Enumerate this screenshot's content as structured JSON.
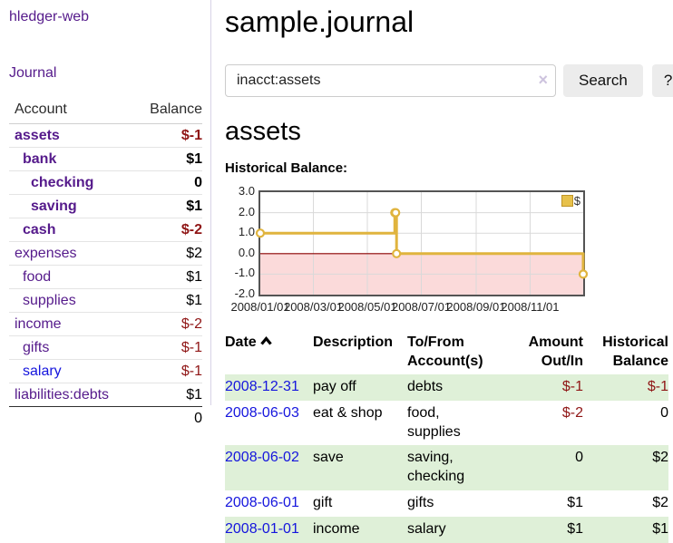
{
  "colors": {
    "accent_purple": "#551a8b",
    "link_blue": "#1515dd",
    "negative_red": "#8f1515",
    "row_stripe_green": "#dff0d8",
    "button_gray": "#ececec",
    "sidebar_divider": "#d8d2e6"
  },
  "brand": "hledger-web",
  "sidebar": {
    "journal_link": "Journal",
    "header": {
      "account": "Account",
      "balance": "Balance"
    },
    "accounts": [
      {
        "name": "assets",
        "balance": "$-1",
        "level": 1,
        "bold": true,
        "negative": true,
        "blue": false
      },
      {
        "name": "bank",
        "balance": "$1",
        "level": 2,
        "bold": true,
        "negative": false,
        "blue": false
      },
      {
        "name": "checking",
        "balance": "0",
        "level": 3,
        "bold": true,
        "negative": false,
        "blue": false
      },
      {
        "name": "saving",
        "balance": "$1",
        "level": 3,
        "bold": true,
        "negative": false,
        "blue": false
      },
      {
        "name": "cash",
        "balance": "$-2",
        "level": 2,
        "bold": true,
        "negative": true,
        "blue": false
      },
      {
        "name": "expenses",
        "balance": "$2",
        "level": 1,
        "bold": false,
        "negative": false,
        "blue": false
      },
      {
        "name": "food",
        "balance": "$1",
        "level": 2,
        "bold": false,
        "negative": false,
        "blue": false
      },
      {
        "name": "supplies",
        "balance": "$1",
        "level": 2,
        "bold": false,
        "negative": false,
        "blue": false
      },
      {
        "name": "income",
        "balance": "$-2",
        "level": 1,
        "bold": false,
        "negative": true,
        "blue": false
      },
      {
        "name": "gifts",
        "balance": "$-1",
        "level": 2,
        "bold": false,
        "negative": true,
        "blue": false
      },
      {
        "name": "salary",
        "balance": "$-1",
        "level": 2,
        "bold": false,
        "negative": true,
        "blue": true
      },
      {
        "name": "liabilities:debts",
        "balance": "$1",
        "level": 1,
        "bold": false,
        "negative": false,
        "blue": false
      }
    ],
    "total": "0"
  },
  "header": {
    "title": "sample.journal"
  },
  "search": {
    "value": "inacct:assets",
    "clear_icon": "×",
    "button_label": "Search",
    "help_label": "?"
  },
  "account_page": {
    "heading": "assets",
    "chart_title": "Historical Balance:"
  },
  "chart_data": {
    "type": "line",
    "step": true,
    "title": "Historical Balance",
    "legend": "$",
    "legend_position": "top-right",
    "x_domain": [
      "2008-01-01",
      "2008-12-31"
    ],
    "y_domain": [
      -2,
      3
    ],
    "y_ticks": [
      3,
      2,
      1,
      0,
      -1,
      -2
    ],
    "y_tick_labels": [
      "3.0",
      "2.0",
      "1.0",
      "0.0",
      "-1.0",
      "-2.0"
    ],
    "x_tick_dates": [
      "2008-01-01",
      "2008-03-01",
      "2008-05-01",
      "2008-07-01",
      "2008-09-01",
      "2008-11-01"
    ],
    "x_tick_labels": [
      "2008/01/01",
      "2008/03/01",
      "2008/05/01",
      "2008/07/01",
      "2008/09/01",
      "2008/11/01"
    ],
    "series": [
      {
        "name": "$",
        "points": [
          [
            "2008-01-01",
            1
          ],
          [
            "2008-06-01",
            2
          ],
          [
            "2008-06-02",
            2
          ],
          [
            "2008-06-03",
            0
          ],
          [
            "2008-12-31",
            -1
          ]
        ]
      }
    ],
    "colors": {
      "line": "#e0b43e",
      "marker_fill": "#ffffff",
      "negative_fill": "#fbdada",
      "zero_line": "#8b0000",
      "grid": "#d9d9d9",
      "border": "#545454"
    }
  },
  "register": {
    "columns": {
      "date": "Date",
      "description": "Description",
      "accounts": "To/From Account(s)",
      "amount": "Amount Out/In",
      "balance": "Historical Balance"
    },
    "sort": {
      "column": "date",
      "direction": "ascending"
    },
    "rows": [
      {
        "date": "2008-12-31",
        "description": "pay off",
        "accounts": "debts",
        "amount": "$-1",
        "balance": "$-1",
        "amount_negative": true,
        "balance_negative": true
      },
      {
        "date": "2008-06-03",
        "description": "eat & shop",
        "accounts": "food, supplies",
        "amount": "$-2",
        "balance": "0",
        "amount_negative": true,
        "balance_negative": false
      },
      {
        "date": "2008-06-02",
        "description": "save",
        "accounts": "saving, checking",
        "amount": "0",
        "balance": "$2",
        "amount_negative": false,
        "balance_negative": false
      },
      {
        "date": "2008-06-01",
        "description": "gift",
        "accounts": "gifts",
        "amount": "$1",
        "balance": "$2",
        "amount_negative": false,
        "balance_negative": false
      },
      {
        "date": "2008-01-01",
        "description": "income",
        "accounts": "salary",
        "amount": "$1",
        "balance": "$1",
        "amount_negative": false,
        "balance_negative": false
      }
    ]
  }
}
